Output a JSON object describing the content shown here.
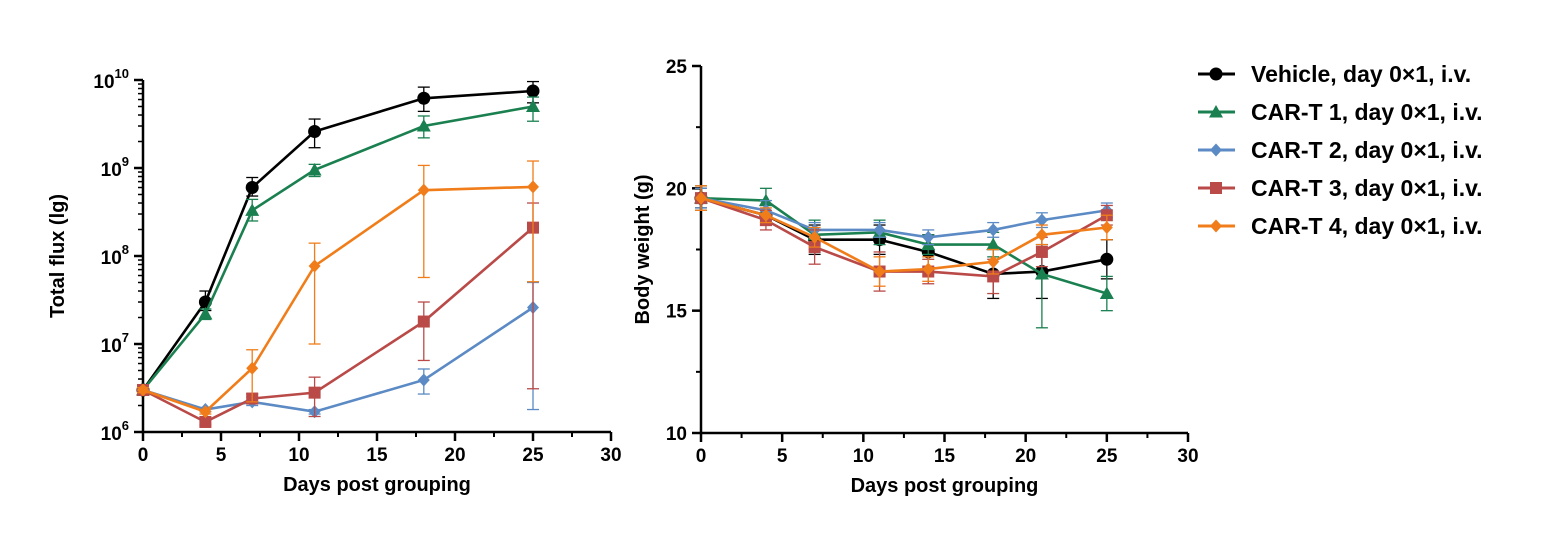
{
  "chart_data": [
    {
      "type": "line",
      "title": "",
      "xlabel": "Days post grouping",
      "ylabel": "Total flux (lg)",
      "yscale": "log",
      "xlim": [
        0,
        30
      ],
      "ylim": [
        1000000,
        10000000000
      ],
      "xticks": [
        "0",
        "5",
        "10",
        "15",
        "20",
        "25",
        "30"
      ],
      "yticks": [
        {
          "base": "10",
          "exp": "6"
        },
        {
          "base": "10",
          "exp": "7"
        },
        {
          "base": "10",
          "exp": "8"
        },
        {
          "base": "10",
          "exp": "9"
        },
        {
          "base": "10",
          "exp": "10"
        }
      ],
      "grid": false,
      "series": [
        {
          "name": "Vehicle, day 0×1, i.v.",
          "x": [
            0,
            4,
            7,
            11,
            18,
            25
          ],
          "y": [
            3000000,
            30000000,
            600000000,
            2600000000,
            6200000000,
            7500000000
          ],
          "err_low": [
            2800000,
            24000000,
            480000000,
            1700000000,
            4400000000,
            5500000000
          ],
          "err_high": [
            3200000,
            40000000,
            780000000,
            3600000000,
            8300000000,
            9600000000
          ]
        },
        {
          "name": "CAR-T 1, day 0×1, i.v.",
          "x": [
            0,
            4,
            7,
            11,
            18,
            25
          ],
          "y": [
            3000000,
            22000000,
            330000000,
            950000000,
            3000000000,
            5000000000
          ],
          "err_low": [
            2800000,
            19000000,
            250000000,
            800000000,
            2200000000,
            3400000000
          ],
          "err_high": [
            3200000,
            25000000,
            440000000,
            1100000000,
            3900000000,
            6400000000
          ]
        },
        {
          "name": "CAR-T 2, day 0×1, i.v.",
          "x": [
            0,
            4,
            7,
            11,
            18,
            25
          ],
          "y": [
            3000000,
            1800000,
            2200000,
            1700000,
            3900000,
            26000000
          ],
          "err_low": [
            2800000,
            1700000,
            2000000,
            1600000,
            2700000,
            1800000
          ],
          "err_high": [
            3200000,
            1900000,
            2500000,
            1800000,
            5200000,
            50000000
          ]
        },
        {
          "name": "CAR-T 3, day 0×1, i.v.",
          "x": [
            0,
            4,
            7,
            11,
            18,
            25
          ],
          "y": [
            3000000,
            1300000,
            2400000,
            2800000,
            18000000,
            210000000
          ],
          "err_low": [
            2800000,
            1200000,
            2100000,
            1500000,
            6500000,
            3100000
          ],
          "err_high": [
            3200000,
            1400000,
            2700000,
            4200000,
            30000000,
            400000000
          ]
        },
        {
          "name": "CAR-T 4, day 0×1, i.v.",
          "x": [
            0,
            4,
            7,
            11,
            18,
            25
          ],
          "y": [
            3000000,
            1700000,
            5300000,
            77000000,
            560000000,
            610000000
          ],
          "err_low": [
            2800000,
            1600000,
            2200000,
            10000000,
            57000000,
            51000000
          ],
          "err_high": [
            3200000,
            1800000,
            8600000,
            140000000,
            1070000000,
            1200000000
          ]
        }
      ]
    },
    {
      "type": "line",
      "title": "",
      "xlabel": "Days post grouping",
      "ylabel": "Body weight (g)",
      "xlim": [
        0,
        30
      ],
      "ylim": [
        10,
        25
      ],
      "xticks": [
        "0",
        "5",
        "10",
        "15",
        "20",
        "25",
        "30"
      ],
      "yticks": [
        "10",
        "15",
        "20",
        "25"
      ],
      "grid": false,
      "series": [
        {
          "name": "Vehicle, day 0×1, i.v.",
          "x": [
            0,
            4,
            7,
            11,
            14,
            18,
            21,
            25
          ],
          "y": [
            19.6,
            18.9,
            17.9,
            17.9,
            17.4,
            16.5,
            16.6,
            17.1
          ],
          "err": [
            0.4,
            0.4,
            0.6,
            0.6,
            0.7,
            1.0,
            1.1,
            0.8
          ]
        },
        {
          "name": "CAR-T 1, day 0×1, i.v.",
          "x": [
            0,
            4,
            7,
            11,
            14,
            18,
            21,
            25
          ],
          "y": [
            19.6,
            19.5,
            18.1,
            18.2,
            17.7,
            17.7,
            16.5,
            15.7
          ],
          "err": [
            0.5,
            0.5,
            0.6,
            0.5,
            0.4,
            0.5,
            2.2,
            0.7
          ]
        },
        {
          "name": "CAR-T 2, day 0×1, i.v.",
          "x": [
            0,
            4,
            7,
            11,
            14,
            18,
            21,
            25
          ],
          "y": [
            19.6,
            19.1,
            18.3,
            18.3,
            18.0,
            18.3,
            18.7,
            19.1
          ],
          "err": [
            0.4,
            0.4,
            0.3,
            0.3,
            0.3,
            0.3,
            0.3,
            0.3
          ]
        },
        {
          "name": "CAR-T 3, day 0×1, i.v.",
          "x": [
            0,
            4,
            7,
            11,
            14,
            18,
            21,
            25
          ],
          "y": [
            19.6,
            18.7,
            17.6,
            16.6,
            16.6,
            16.4,
            17.4,
            18.9
          ],
          "err": [
            0.5,
            0.4,
            0.7,
            0.8,
            0.5,
            0.7,
            0.6,
            0.4
          ]
        },
        {
          "name": "CAR-T 4, day 0×1, i.v.",
          "x": [
            0,
            4,
            7,
            11,
            14,
            18,
            21,
            25
          ],
          "y": [
            19.6,
            18.9,
            18.0,
            16.6,
            16.7,
            17.0,
            18.1,
            18.4
          ],
          "err": [
            0.5,
            0.3,
            0.4,
            0.6,
            0.5,
            0.5,
            0.4,
            0.5
          ]
        }
      ]
    }
  ],
  "legend": {
    "placement": "right",
    "items": [
      {
        "label": "Vehicle, day 0×1, i.v.",
        "color": "#000000",
        "marker": "circle"
      },
      {
        "label": "CAR-T 1, day 0×1, i.v.",
        "color": "#1a8050",
        "marker": "triangle"
      },
      {
        "label": "CAR-T 2, day 0×1, i.v.",
        "color": "#5b8ac4",
        "marker": "diamond"
      },
      {
        "label": "CAR-T 3, day 0×1, i.v.",
        "color": "#b94a48",
        "marker": "square"
      },
      {
        "label": "CAR-T 4, day 0×1, i.v.",
        "color": "#f07d1a",
        "marker": "diamond"
      }
    ]
  }
}
